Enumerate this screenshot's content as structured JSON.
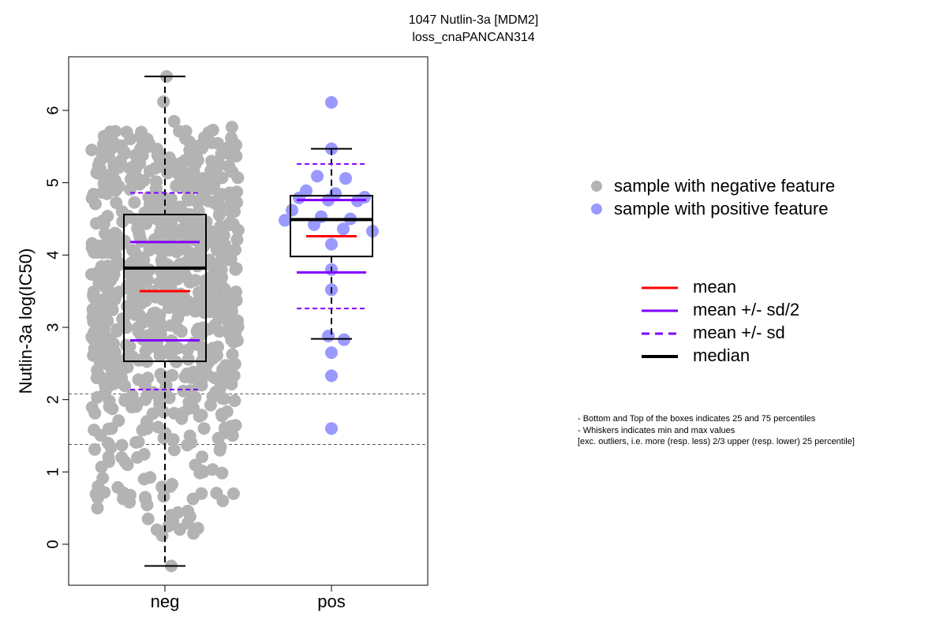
{
  "chart_data": {
    "type": "box",
    "title": "1047 Nutlin-3a [MDM2]",
    "subtitle": "loss_cnaPANCAN314",
    "ylabel": "Nutlin-3a log(IC50)",
    "ylim": [
      -0.6,
      6.8
    ],
    "yticks": [
      0,
      1,
      2,
      3,
      4,
      5,
      6
    ],
    "categories": [
      "neg",
      "pos"
    ],
    "reference_lines": [
      2.08,
      1.38
    ],
    "groups": [
      {
        "name": "neg",
        "color": "#b3b3b3",
        "box": {
          "q1": 2.53,
          "median": 3.82,
          "q3": 4.56,
          "whisker_low": -0.3,
          "whisker_high": 6.47
        },
        "mean": 3.5,
        "mean_minus_half_sd": 2.82,
        "mean_plus_half_sd": 4.18,
        "mean_minus_sd": 2.14,
        "mean_plus_sd": 4.86,
        "n_points": 800,
        "points_sample": [
          6.47,
          6.12,
          5.85,
          5.77,
          5.7,
          5.62,
          5.55,
          5.5,
          5.45,
          5.4,
          5.3,
          5.2,
          5.1,
          5.0,
          4.9,
          4.8,
          4.7,
          4.6,
          4.5,
          4.4,
          4.3,
          4.2,
          4.1,
          4.0,
          3.9,
          3.8,
          3.7,
          3.6,
          3.5,
          3.4,
          3.3,
          3.2,
          3.1,
          3.0,
          2.9,
          2.8,
          2.7,
          2.6,
          2.5,
          2.4,
          2.3,
          2.2,
          2.1,
          2.0,
          1.9,
          1.8,
          1.7,
          1.6,
          1.5,
          1.4,
          1.3,
          1.2,
          1.1,
          1.0,
          0.9,
          0.8,
          0.7,
          0.6,
          0.5,
          0.4,
          0.35,
          0.25,
          0.2,
          0.15,
          0.12,
          -0.3
        ]
      },
      {
        "name": "pos",
        "color": "#9999ff",
        "box": {
          "q1": 3.98,
          "median": 4.49,
          "q3": 4.82,
          "whisker_low": 2.84,
          "whisker_high": 5.47
        },
        "mean": 4.26,
        "mean_minus_half_sd": 3.76,
        "mean_plus_half_sd": 4.76,
        "mean_minus_sd": 3.26,
        "mean_plus_sd": 5.26,
        "points": [
          6.11,
          5.47,
          5.09,
          5.06,
          4.89,
          4.85,
          4.8,
          4.79,
          4.76,
          4.75,
          4.62,
          4.53,
          4.5,
          4.48,
          4.42,
          4.36,
          4.33,
          4.15,
          3.8,
          3.52,
          2.88,
          2.83,
          2.65,
          2.33,
          1.6
        ]
      }
    ],
    "legend_points": [
      {
        "label": "sample with negative feature",
        "color": "#b3b3b3"
      },
      {
        "label": "sample with positive feature",
        "color": "#9999ff"
      }
    ],
    "legend_lines": [
      {
        "label": "mean",
        "color": "#ff0000",
        "style": "solid"
      },
      {
        "label": "mean +/- sd/2",
        "color": "#8000ff",
        "style": "solid"
      },
      {
        "label": "mean +/- sd",
        "color": "#8000ff",
        "style": "dashed"
      },
      {
        "label": "median",
        "color": "#000000",
        "style": "solid-thick"
      }
    ],
    "notes": [
      "- Bottom and Top of the boxes indicates 25 and 75 percentiles",
      "- Whiskers indicates min and max values",
      "[exc. outliers, i.e. more (resp. less) 2/3 upper (resp. lower) 25 percentile]"
    ]
  }
}
